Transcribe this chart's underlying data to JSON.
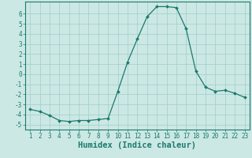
{
  "x": [
    1,
    2,
    3,
    4,
    5,
    6,
    7,
    8,
    9,
    10,
    11,
    12,
    13,
    14,
    15,
    16,
    17,
    18,
    19,
    20,
    21,
    22,
    23
  ],
  "y": [
    -3.5,
    -3.7,
    -4.1,
    -4.6,
    -4.7,
    -4.6,
    -4.6,
    -4.5,
    -4.4,
    -1.7,
    1.2,
    3.5,
    5.7,
    6.7,
    6.7,
    6.6,
    4.5,
    0.3,
    -1.3,
    -1.7,
    -1.6,
    -1.9,
    -2.3
  ],
  "line_color": "#1a7a6e",
  "marker": "D",
  "marker_size": 2.0,
  "bg_color": "#cce8e4",
  "grid_color": "#9ececa",
  "xlabel": "Humidex (Indice chaleur)",
  "xlim": [
    0.5,
    23.5
  ],
  "ylim": [
    -5.5,
    7.2
  ],
  "yticks": [
    -5,
    -4,
    -3,
    -2,
    -1,
    0,
    1,
    2,
    3,
    4,
    5,
    6
  ],
  "xticks": [
    1,
    2,
    3,
    4,
    5,
    6,
    7,
    8,
    9,
    10,
    11,
    12,
    13,
    14,
    15,
    16,
    17,
    18,
    19,
    20,
    21,
    22,
    23
  ],
  "tick_fontsize": 5.5,
  "xlabel_fontsize": 7.5
}
